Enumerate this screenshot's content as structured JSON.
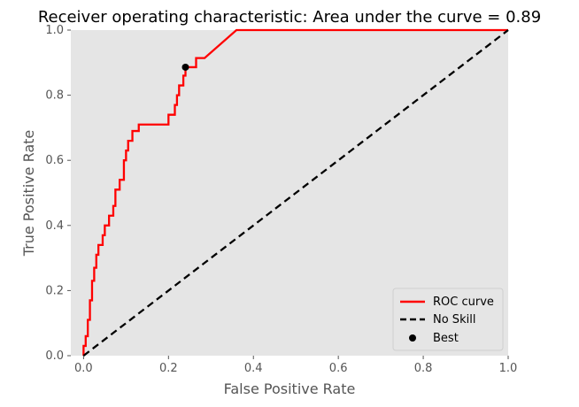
{
  "chart_data": {
    "type": "line",
    "title": "Receiver operating characteristic: Area under the curve = 0.89",
    "xlabel": "False Positive Rate",
    "ylabel": "True Positive Rate",
    "xlim": [
      -0.03,
      1.0
    ],
    "ylim": [
      0.0,
      1.0
    ],
    "xticks": [
      "0.0",
      "0.2",
      "0.4",
      "0.6",
      "0.8",
      "1.0"
    ],
    "yticks": [
      "0.0",
      "0.2",
      "0.4",
      "0.6",
      "0.8",
      "1.0"
    ],
    "grid": false,
    "legend_position": "lower-right",
    "series": [
      {
        "name": "ROC curve",
        "color": "#ff0000",
        "style": "solid",
        "x": [
          0.0,
          0.0,
          0.005,
          0.005,
          0.01,
          0.01,
          0.015,
          0.015,
          0.02,
          0.02,
          0.025,
          0.025,
          0.03,
          0.03,
          0.035,
          0.035,
          0.045,
          0.045,
          0.05,
          0.05,
          0.06,
          0.06,
          0.07,
          0.07,
          0.075,
          0.075,
          0.085,
          0.085,
          0.095,
          0.095,
          0.1,
          0.1,
          0.105,
          0.105,
          0.115,
          0.115,
          0.13,
          0.13,
          0.145,
          0.145,
          0.2,
          0.2,
          0.215,
          0.215,
          0.22,
          0.22,
          0.225,
          0.225,
          0.235,
          0.235,
          0.24,
          0.24,
          0.265,
          0.265,
          0.285,
          0.36,
          1.0
        ],
        "y": [
          0.0,
          0.03,
          0.03,
          0.06,
          0.06,
          0.11,
          0.11,
          0.17,
          0.17,
          0.23,
          0.23,
          0.27,
          0.27,
          0.31,
          0.31,
          0.34,
          0.34,
          0.37,
          0.37,
          0.4,
          0.4,
          0.43,
          0.43,
          0.46,
          0.46,
          0.51,
          0.51,
          0.54,
          0.54,
          0.6,
          0.6,
          0.63,
          0.63,
          0.66,
          0.66,
          0.69,
          0.69,
          0.71,
          0.71,
          0.71,
          0.71,
          0.74,
          0.74,
          0.77,
          0.77,
          0.8,
          0.8,
          0.83,
          0.83,
          0.86,
          0.86,
          0.886,
          0.886,
          0.914,
          0.914,
          1.0,
          1.0
        ]
      },
      {
        "name": "No Skill",
        "color": "#000000",
        "style": "dashed",
        "x": [
          0.0,
          1.0
        ],
        "y": [
          0.0,
          1.0
        ]
      }
    ],
    "points": [
      {
        "name": "Best",
        "x": 0.24,
        "y": 0.886,
        "color": "#000000"
      }
    ]
  }
}
